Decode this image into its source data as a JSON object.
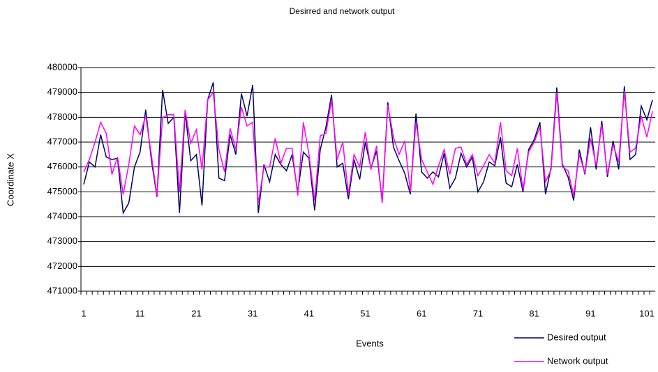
{
  "chart_data": {
    "type": "line",
    "title": "Desirred and network output",
    "x_label": "Events",
    "y_label": "Coordinate X",
    "categories": [
      "1",
      null,
      null,
      null,
      null,
      null,
      null,
      null,
      null,
      null,
      "11",
      null,
      null,
      null,
      null,
      null,
      null,
      null,
      null,
      null,
      "21",
      null,
      null,
      null,
      null,
      null,
      null,
      null,
      null,
      null,
      "31",
      null,
      null,
      null,
      null,
      null,
      null,
      null,
      null,
      null,
      "41",
      null,
      null,
      null,
      null,
      null,
      null,
      null,
      null,
      null,
      "51",
      null,
      null,
      null,
      null,
      null,
      null,
      null,
      null,
      null,
      "61",
      null,
      null,
      null,
      null,
      null,
      null,
      null,
      null,
      null,
      "71",
      null,
      null,
      null,
      null,
      null,
      null,
      null,
      null,
      null,
      "81",
      null,
      null,
      null,
      null,
      null,
      null,
      null,
      null,
      null,
      "91",
      null,
      null,
      null,
      null,
      null,
      null,
      null,
      null,
      null,
      "101",
      null
    ],
    "series": [
      {
        "name": "Desired output",
        "color": "#000066",
        "values": [
          475300,
          476200,
          476000,
          477300,
          476400,
          476300,
          476350,
          474150,
          474550,
          476000,
          476600,
          478300,
          476300,
          474800,
          479100,
          477750,
          478000,
          474150,
          478200,
          476250,
          476500,
          474450,
          478700,
          479400,
          475550,
          475450,
          477300,
          476500,
          478950,
          478050,
          479300,
          474150,
          476100,
          475400,
          476500,
          476100,
          475850,
          476500,
          475000,
          476600,
          476350,
          474250,
          476700,
          477600,
          478900,
          476000,
          476150,
          474700,
          476300,
          475500,
          477000,
          475950,
          476650,
          474600,
          478600,
          476800,
          476250,
          475750,
          474900,
          478150,
          475800,
          475550,
          475800,
          475600,
          476550,
          475150,
          475550,
          476550,
          476000,
          476400,
          475000,
          475400,
          476200,
          476050,
          477200,
          475350,
          475200,
          476100,
          475000,
          476700,
          477100,
          477800,
          474900,
          476000,
          479200,
          476100,
          475600,
          474650,
          476700,
          475700,
          477600,
          475900,
          477850,
          475600,
          477050,
          475900,
          479250,
          476300,
          476500,
          478450,
          477900,
          478700
        ]
      },
      {
        "name": "Network output",
        "color": "#ff00ff",
        "values": [
          475800,
          476300,
          477000,
          477800,
          477350,
          475700,
          476400,
          474900,
          476100,
          477650,
          477300,
          478050,
          476500,
          474850,
          478000,
          478100,
          478100,
          475000,
          478300,
          476950,
          477500,
          475900,
          478700,
          479000,
          476700,
          475800,
          477550,
          476700,
          478400,
          477650,
          477800,
          474550,
          476000,
          476000,
          477150,
          476150,
          476750,
          476750,
          474850,
          477800,
          476500,
          474650,
          477250,
          477350,
          478700,
          476300,
          477000,
          474900,
          476500,
          476000,
          477400,
          475900,
          476850,
          474550,
          478500,
          477200,
          476500,
          477050,
          475000,
          477800,
          476300,
          475800,
          475300,
          476050,
          476700,
          475700,
          476750,
          476800,
          476100,
          476500,
          475650,
          476050,
          476500,
          476150,
          477800,
          475850,
          475650,
          476750,
          475100,
          476600,
          477000,
          477600,
          475400,
          475900,
          479000,
          476000,
          475850,
          474850,
          476500,
          475750,
          477150,
          476050,
          477700,
          475700,
          476900,
          476200,
          479050,
          476600,
          476750,
          478050,
          477200,
          478250
        ]
      }
    ],
    "ylim": [
      471000,
      480000
    ],
    "yticks": [
      471000,
      472000,
      473000,
      474000,
      475000,
      476000,
      477000,
      478000,
      479000,
      480000
    ],
    "grid": true,
    "legend": "lower right"
  }
}
